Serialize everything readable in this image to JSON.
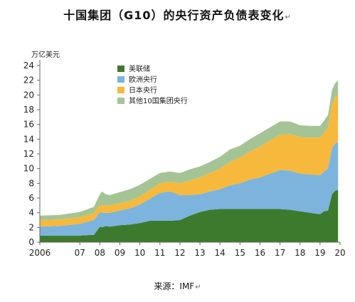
{
  "title": "十国集团（G10）的央行资产负债表变化",
  "title_mark": "↵",
  "source": "来源：IMF",
  "source_mark": "↵",
  "chart_data": {
    "type": "area",
    "stacked": true,
    "ylabel": "万亿美元",
    "ylim": [
      0,
      24
    ],
    "yticks": [
      0,
      2,
      4,
      6,
      8,
      10,
      12,
      14,
      16,
      18,
      20,
      22,
      24
    ],
    "xlim": [
      2006,
      2021
    ],
    "xticks": [
      {
        "value": 2006,
        "label": "2006"
      },
      {
        "value": 2008,
        "label": "07"
      },
      {
        "value": 2009,
        "label": "08"
      },
      {
        "value": 2010,
        "label": "09"
      },
      {
        "value": 2011,
        "label": "10"
      },
      {
        "value": 2012,
        "label": "11"
      },
      {
        "value": 2013,
        "label": "12"
      },
      {
        "value": 2014,
        "label": "13"
      },
      {
        "value": 2015,
        "label": "14"
      },
      {
        "value": 2016,
        "label": "15"
      },
      {
        "value": 2017,
        "label": "16"
      },
      {
        "value": 2018,
        "label": "17"
      },
      {
        "value": 2019,
        "label": "18"
      },
      {
        "value": 2020,
        "label": "19"
      },
      {
        "value": 2021,
        "label": "20"
      }
    ],
    "x": [
      2006.0,
      2007.0,
      2008.0,
      2008.7,
      2009.0,
      2009.1,
      2009.3,
      2009.5,
      2010.0,
      2010.5,
      2011.0,
      2011.5,
      2012.0,
      2012.5,
      2013.0,
      2013.5,
      2014.0,
      2014.5,
      2015.0,
      2015.5,
      2016.0,
      2016.5,
      2017.0,
      2017.5,
      2018.0,
      2018.5,
      2019.0,
      2019.5,
      2020.0,
      2020.2,
      2020.4,
      2020.6,
      2020.75,
      2020.9
    ],
    "legend_position": "top-left",
    "series": [
      {
        "name": "美联储",
        "color": "#3d7a2e",
        "values": [
          0.9,
          0.9,
          0.9,
          1.0,
          2.1,
          2.0,
          2.2,
          2.1,
          2.3,
          2.4,
          2.6,
          2.9,
          2.9,
          2.9,
          3.0,
          3.6,
          4.1,
          4.4,
          4.5,
          4.5,
          4.5,
          4.5,
          4.5,
          4.5,
          4.5,
          4.4,
          4.2,
          4.0,
          3.8,
          4.2,
          4.3,
          6.5,
          7.0,
          7.1
        ]
      },
      {
        "name": "欧洲央行",
        "color": "#7cb4de",
        "values": [
          1.2,
          1.3,
          1.6,
          2.0,
          2.0,
          2.0,
          1.8,
          1.9,
          2.0,
          2.2,
          2.5,
          3.0,
          3.8,
          4.0,
          3.4,
          2.8,
          2.4,
          2.5,
          2.7,
          3.2,
          3.5,
          4.0,
          4.3,
          4.8,
          5.3,
          5.3,
          5.1,
          5.2,
          5.3,
          5.4,
          5.7,
          6.3,
          6.4,
          6.5
        ]
      },
      {
        "name": "日本央行",
        "color": "#f6b93c",
        "values": [
          0.9,
          0.9,
          0.9,
          1.0,
          1.0,
          1.0,
          1.0,
          1.0,
          1.0,
          1.0,
          1.1,
          1.2,
          1.3,
          1.3,
          1.6,
          2.0,
          2.3,
          2.5,
          2.8,
          3.2,
          3.5,
          3.8,
          4.2,
          4.5,
          4.8,
          5.0,
          5.0,
          5.0,
          5.1,
          5.3,
          5.6,
          6.0,
          6.3,
          6.4
        ]
      },
      {
        "name": "其他10国集团央行",
        "color": "#a5c496",
        "values": [
          0.6,
          0.6,
          0.7,
          0.8,
          1.4,
          1.9,
          1.5,
          1.4,
          1.5,
          1.6,
          1.6,
          1.5,
          1.4,
          1.4,
          1.4,
          1.5,
          1.5,
          1.5,
          1.6,
          1.7,
          1.6,
          1.7,
          1.8,
          1.8,
          1.8,
          1.7,
          1.6,
          1.6,
          1.6,
          1.6,
          1.7,
          1.9,
          1.9,
          2.0
        ]
      }
    ]
  }
}
